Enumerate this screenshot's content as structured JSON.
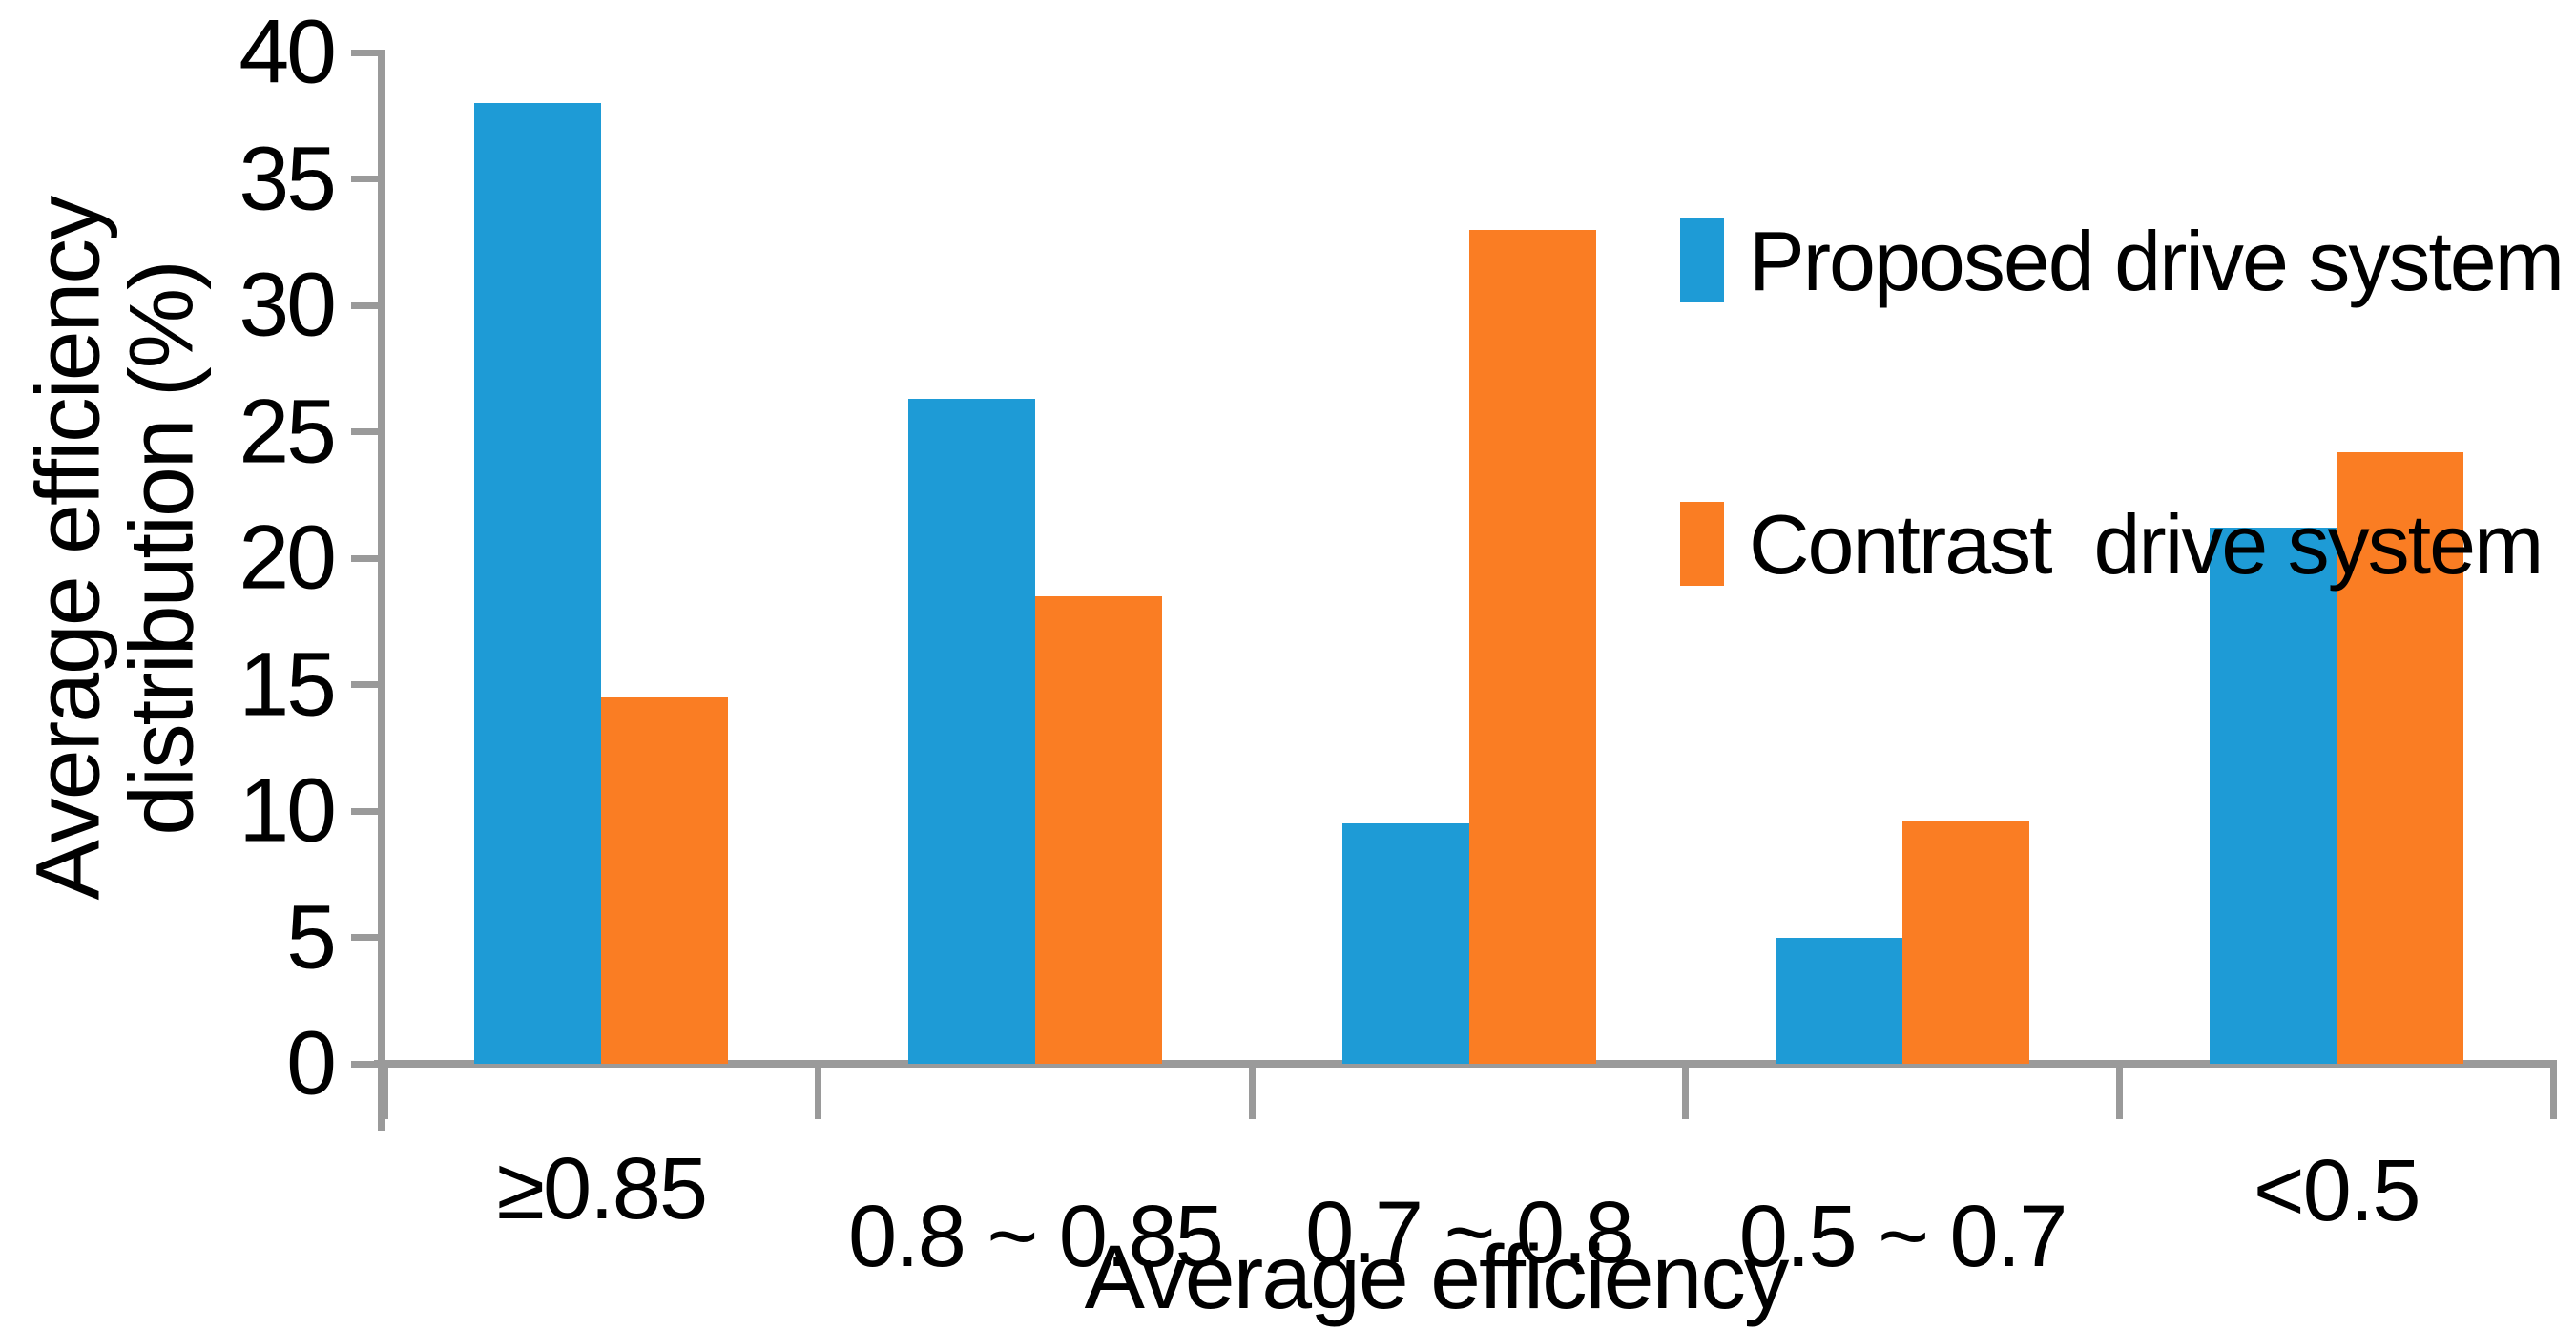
{
  "chart_data": {
    "type": "bar",
    "title": "",
    "categories": [
      "≥0.85",
      "0.8 ~ 0.85",
      "0.7 ~ 0.8",
      "0.5 ~ 0.7",
      "<0.5"
    ],
    "series": [
      {
        "name": "Proposed drive system",
        "color": "#1E9BD6",
        "values": [
          38,
          26.3,
          9.5,
          5,
          21.2
        ]
      },
      {
        "name": "Contrast  drive system",
        "color": "#FA7D23",
        "values": [
          14.5,
          18.5,
          33,
          9.6,
          24.2
        ]
      }
    ],
    "xlabel": "Average efficiency",
    "ylabel_line1": "Average efficiency",
    "ylabel_line2": "distribution (%)",
    "ylim": [
      0,
      40
    ],
    "ytick_step": 5,
    "yticks": [
      0,
      5,
      10,
      15,
      20,
      25,
      30,
      35,
      40
    ],
    "legend_position": "top-right",
    "grid": false,
    "axis_color": "#9A9A9A",
    "text_color": "#000000"
  }
}
